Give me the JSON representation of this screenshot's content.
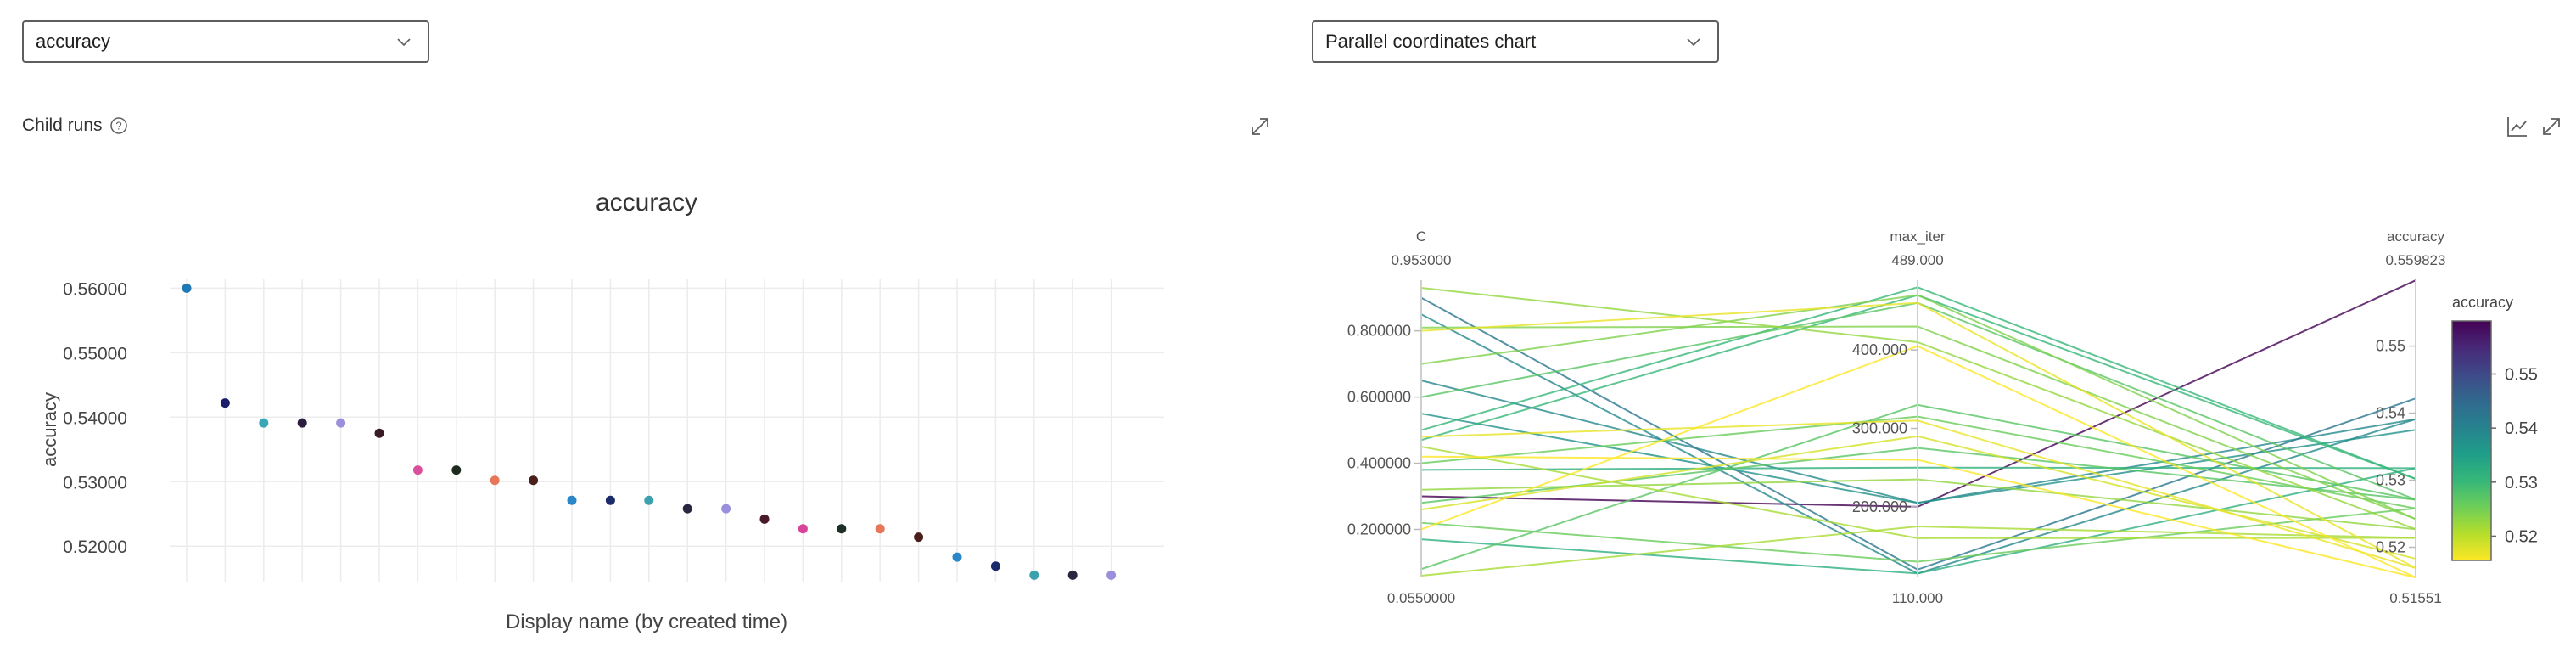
{
  "left": {
    "metric_select": {
      "value": "accuracy"
    },
    "child_runs_label": "Child runs",
    "chart_data": {
      "type": "scatter",
      "title": "accuracy",
      "xlabel": "Display name (by created time)",
      "ylabel": "accuracy",
      "ylim": [
        0.5145,
        0.5615
      ],
      "yticks": [
        "0.56000",
        "0.55000",
        "0.54000",
        "0.53000",
        "0.52000"
      ],
      "ytick_values": [
        0.56,
        0.55,
        0.54,
        0.53,
        0.52
      ],
      "grid": true,
      "points": [
        {
          "value": 0.56,
          "color": "#1f77b4"
        },
        {
          "value": 0.5422,
          "color": "#1b1f6b"
        },
        {
          "value": 0.5391,
          "color": "#3ba7b6"
        },
        {
          "value": 0.5391,
          "color": "#2b1d3f"
        },
        {
          "value": 0.5391,
          "color": "#9a8fdc"
        },
        {
          "value": 0.5375,
          "color": "#3a1a26"
        },
        {
          "value": 0.5318,
          "color": "#d94f9b"
        },
        {
          "value": 0.5318,
          "color": "#1e2a20"
        },
        {
          "value": 0.5302,
          "color": "#e8775a"
        },
        {
          "value": 0.5302,
          "color": "#4a1f1a"
        },
        {
          "value": 0.5271,
          "color": "#2b88c8"
        },
        {
          "value": 0.5271,
          "color": "#1b2a6b"
        },
        {
          "value": 0.5271,
          "color": "#3aa1ad"
        },
        {
          "value": 0.5258,
          "color": "#2a2640"
        },
        {
          "value": 0.5258,
          "color": "#9a8fdc"
        },
        {
          "value": 0.5242,
          "color": "#4a1a28"
        },
        {
          "value": 0.5227,
          "color": "#d9449b"
        },
        {
          "value": 0.5227,
          "color": "#1e2f26"
        },
        {
          "value": 0.5227,
          "color": "#e8775a"
        },
        {
          "value": 0.5214,
          "color": "#4a1f1a"
        },
        {
          "value": 0.5183,
          "color": "#2b88c8"
        },
        {
          "value": 0.5169,
          "color": "#1b2a6b"
        },
        {
          "value": 0.5155,
          "color": "#3aa1ad"
        },
        {
          "value": 0.5155,
          "color": "#2a2640"
        },
        {
          "value": 0.5155,
          "color": "#9a8fdc"
        }
      ]
    }
  },
  "right": {
    "chart_type_select": {
      "value": "Parallel coordinates chart"
    },
    "chart_data": {
      "type": "parallel_coordinates",
      "axes": [
        {
          "name": "C",
          "min": 0.055,
          "max": 0.953,
          "min_label": "0.0550000",
          "max_label": "0.953000",
          "ticks": [
            {
              "v": 0.8,
              "label": "0.800000"
            },
            {
              "v": 0.6,
              "label": "0.600000"
            },
            {
              "v": 0.4,
              "label": "0.400000"
            },
            {
              "v": 0.2,
              "label": "0.200000"
            }
          ]
        },
        {
          "name": "max_iter",
          "min": 110,
          "max": 489,
          "min_label": "110.000",
          "max_label": "489.000",
          "ticks": [
            {
              "v": 400,
              "label": "400.000"
            },
            {
              "v": 300,
              "label": "300.000"
            },
            {
              "v": 200,
              "label": "200.000"
            }
          ]
        },
        {
          "name": "accuracy",
          "min": 0.51551,
          "max": 0.559823,
          "min_label": "0.51551",
          "max_label": "0.559823",
          "ticks": [
            {
              "v": 0.55,
              "label": "0.55"
            },
            {
              "v": 0.54,
              "label": "0.54"
            },
            {
              "v": 0.53,
              "label": "0.53"
            },
            {
              "v": 0.52,
              "label": "0.52"
            }
          ]
        }
      ],
      "colorbar": {
        "title": "accuracy",
        "ticks": [
          "0.55",
          "0.54",
          "0.53",
          "0.52"
        ],
        "tick_values": [
          0.55,
          0.54,
          0.53,
          0.52
        ],
        "min": 0.51551,
        "max": 0.559823,
        "colors": [
          "#fde725",
          "#b5de2b",
          "#6ece58",
          "#35b779",
          "#1f9e89",
          "#26828e",
          "#31688e",
          "#3e4989",
          "#482878",
          "#440154"
        ]
      },
      "runs": [
        {
          "C": 0.3,
          "max_iter": 200,
          "accuracy": 0.5598
        },
        {
          "C": 0.9,
          "max_iter": 120,
          "accuracy": 0.5422
        },
        {
          "C": 0.85,
          "max_iter": 115,
          "accuracy": 0.5391
        },
        {
          "C": 0.65,
          "max_iter": 205,
          "accuracy": 0.5391
        },
        {
          "C": 0.55,
          "max_iter": 205,
          "accuracy": 0.5375
        },
        {
          "C": 0.17,
          "max_iter": 115,
          "accuracy": 0.5318
        },
        {
          "C": 0.38,
          "max_iter": 250,
          "accuracy": 0.5318
        },
        {
          "C": 0.47,
          "max_iter": 470,
          "accuracy": 0.5302
        },
        {
          "C": 0.5,
          "max_iter": 480,
          "accuracy": 0.5302
        },
        {
          "C": 0.6,
          "max_iter": 460,
          "accuracy": 0.5271
        },
        {
          "C": 0.28,
          "max_iter": 275,
          "accuracy": 0.5271
        },
        {
          "C": 0.08,
          "max_iter": 330,
          "accuracy": 0.5271
        },
        {
          "C": 0.22,
          "max_iter": 130,
          "accuracy": 0.5258
        },
        {
          "C": 0.4,
          "max_iter": 315,
          "accuracy": 0.5258
        },
        {
          "C": 0.81,
          "max_iter": 430,
          "accuracy": 0.5242
        },
        {
          "C": 0.7,
          "max_iter": 470,
          "accuracy": 0.5242
        },
        {
          "C": 0.32,
          "max_iter": 235,
          "accuracy": 0.5227
        },
        {
          "C": 0.93,
          "max_iter": 410,
          "accuracy": 0.5227
        },
        {
          "C": 0.45,
          "max_iter": 160,
          "accuracy": 0.5214
        },
        {
          "C": 0.06,
          "max_iter": 175,
          "accuracy": 0.5214
        },
        {
          "C": 0.26,
          "max_iter": 290,
          "accuracy": 0.5183
        },
        {
          "C": 0.8,
          "max_iter": 460,
          "accuracy": 0.5169
        },
        {
          "C": 0.48,
          "max_iter": 310,
          "accuracy": 0.5169
        },
        {
          "C": 0.2,
          "max_iter": 405,
          "accuracy": 0.5155
        },
        {
          "C": 0.42,
          "max_iter": 260,
          "accuracy": 0.5155
        }
      ]
    }
  }
}
